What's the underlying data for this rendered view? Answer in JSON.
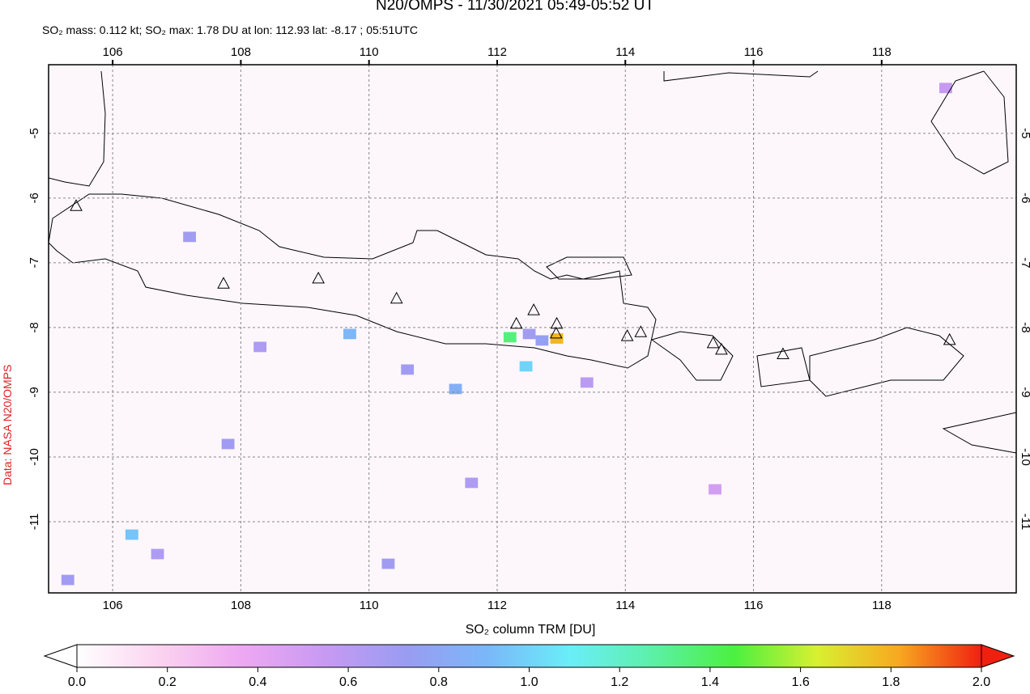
{
  "chart_data": {
    "type": "map",
    "title": "N20/OMPS - 11/30/2021 05:49-05:52 UT",
    "subtitle": "SO₂ mass: 0.112 kt; SO₂ max: 1.78 DU at lon: 112.93 lat: -8.17 ; 05:51UTC",
    "source_label": "Data: NASA N20/OMPS",
    "xlim": [
      105,
      120.1
    ],
    "ylim": [
      -12.1,
      -3.94
    ],
    "xticks": [
      106,
      108,
      110,
      112,
      114,
      116,
      118
    ],
    "yticks": [
      -5,
      -6,
      -7,
      -8,
      -9,
      -10,
      -11
    ],
    "grid": true,
    "pixels": {
      "lon": [
        112.93,
        112.2,
        112.45,
        112.7,
        112.5,
        109.7,
        111.35,
        106.3,
        107.8,
        108.3,
        110.6,
        111.6,
        110.3,
        105.3,
        106.7,
        107.2,
        113.4,
        115.4,
        119.0
      ],
      "lat": [
        -8.17,
        -8.15,
        -8.6,
        -8.2,
        -8.1,
        -8.1,
        -8.95,
        -11.2,
        -9.8,
        -8.3,
        -8.65,
        -10.4,
        -11.65,
        -11.9,
        -11.5,
        -6.6,
        -8.85,
        -10.5,
        -4.3
      ],
      "values": [
        1.78,
        1.35,
        1.0,
        0.75,
        0.7,
        0.9,
        0.85,
        0.95,
        0.7,
        0.65,
        0.7,
        0.65,
        0.7,
        0.7,
        0.65,
        0.7,
        0.6,
        0.5,
        0.55
      ]
    },
    "volcanoes": {
      "lon": [
        105.43,
        107.73,
        109.21,
        110.43,
        112.3,
        112.57,
        112.93,
        112.92,
        114.03,
        114.24,
        115.37,
        115.5,
        116.46,
        119.06
      ],
      "lat": [
        -6.13,
        -7.33,
        -7.25,
        -7.56,
        -7.95,
        -7.74,
        -7.95,
        -8.1,
        -8.14,
        -8.08,
        -8.25,
        -8.35,
        -8.42,
        -8.2
      ]
    },
    "colorbar": {
      "label": "SO₂ column TRM [DU]",
      "range": [
        0,
        2
      ],
      "ticks": [
        {
          "value": 0,
          "label": "0.0"
        },
        0.2,
        0.4,
        0.6,
        0.8,
        {
          "value": 1,
          "label": "1.0"
        },
        1.2,
        1.4,
        1.6,
        1.8,
        {
          "value": 2,
          "label": "2.0"
        }
      ],
      "colors": [
        "#ffffff",
        "#fbd3f0",
        "#eea8f2",
        "#c89af2",
        "#9a9cf2",
        "#7ab8f8",
        "#6aeef8",
        "#5cf0a8",
        "#4cf040",
        "#d8f030",
        "#f8a820",
        "#f02010"
      ]
    }
  }
}
